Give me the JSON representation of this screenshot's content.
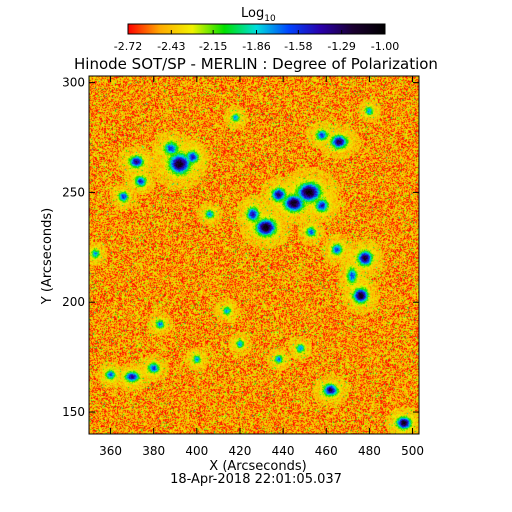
{
  "chart_data": {
    "type": "heatmap",
    "title": "Hinode SOT/SP - MERLIN : Degree of Polarization",
    "xlabel": "X (Arcseconds)",
    "ylabel": "Y (Arcseconds)",
    "xlim": [
      350,
      503
    ],
    "ylim": [
      140,
      303
    ],
    "x_ticks": [
      360,
      380,
      400,
      420,
      440,
      460,
      480,
      500
    ],
    "y_ticks": [
      150,
      200,
      250,
      300
    ],
    "colorbar": {
      "label": "Log",
      "label_subscript": "10",
      "range": [
        -2.72,
        -1.0
      ],
      "ticks": [
        "-2.72",
        "-2.43",
        "-2.15",
        "-1.86",
        "-1.58",
        "-1.29",
        "-1.00"
      ],
      "colormap": [
        "#ff0000",
        "#ffaa00",
        "#f2f200",
        "#00e000",
        "#00dddd",
        "#0044ff",
        "#2a00aa",
        "#1a0030",
        "#000000"
      ]
    },
    "background_level": -2.5,
    "features": [
      {
        "x": 392,
        "y": 263,
        "peak": -1.1,
        "sx": 3.2,
        "sy": 3.0
      },
      {
        "x": 388,
        "y": 270,
        "peak": -1.55,
        "sx": 2.2,
        "sy": 2.0
      },
      {
        "x": 398,
        "y": 266,
        "peak": -1.5,
        "sx": 2.0,
        "sy": 2.0
      },
      {
        "x": 372,
        "y": 264,
        "peak": -1.35,
        "sx": 2.2,
        "sy": 1.8
      },
      {
        "x": 374,
        "y": 255,
        "peak": -1.5,
        "sx": 1.8,
        "sy": 1.6
      },
      {
        "x": 366,
        "y": 248,
        "peak": -1.55,
        "sx": 1.6,
        "sy": 1.6
      },
      {
        "x": 452,
        "y": 250,
        "peak": -1.05,
        "sx": 3.5,
        "sy": 2.8
      },
      {
        "x": 445,
        "y": 245,
        "peak": -1.1,
        "sx": 3.0,
        "sy": 2.5
      },
      {
        "x": 438,
        "y": 249,
        "peak": -1.3,
        "sx": 2.2,
        "sy": 2.0
      },
      {
        "x": 432,
        "y": 234,
        "peak": -1.05,
        "sx": 3.0,
        "sy": 2.5
      },
      {
        "x": 426,
        "y": 240,
        "peak": -1.45,
        "sx": 2.0,
        "sy": 2.2
      },
      {
        "x": 458,
        "y": 244,
        "peak": -1.45,
        "sx": 2.0,
        "sy": 2.0
      },
      {
        "x": 466,
        "y": 273,
        "peak": -1.25,
        "sx": 2.5,
        "sy": 2.0
      },
      {
        "x": 458,
        "y": 276,
        "peak": -1.55,
        "sx": 1.8,
        "sy": 1.6
      },
      {
        "x": 478,
        "y": 220,
        "peak": -1.2,
        "sx": 2.2,
        "sy": 2.2
      },
      {
        "x": 476,
        "y": 203,
        "peak": -1.1,
        "sx": 2.2,
        "sy": 2.2
      },
      {
        "x": 472,
        "y": 212,
        "peak": -1.6,
        "sx": 1.6,
        "sy": 2.5
      },
      {
        "x": 465,
        "y": 224,
        "peak": -1.6,
        "sx": 1.8,
        "sy": 1.8
      },
      {
        "x": 453,
        "y": 232,
        "peak": -1.65,
        "sx": 1.6,
        "sy": 1.6
      },
      {
        "x": 370,
        "y": 166,
        "peak": -1.4,
        "sx": 2.2,
        "sy": 1.6
      },
      {
        "x": 380,
        "y": 170,
        "peak": -1.55,
        "sx": 1.8,
        "sy": 1.6
      },
      {
        "x": 360,
        "y": 167,
        "peak": -1.6,
        "sx": 1.6,
        "sy": 1.5
      },
      {
        "x": 462,
        "y": 160,
        "peak": -1.25,
        "sx": 2.2,
        "sy": 1.8
      },
      {
        "x": 496,
        "y": 145,
        "peak": -1.1,
        "sx": 2.2,
        "sy": 1.8
      },
      {
        "x": 406,
        "y": 240,
        "peak": -1.7,
        "sx": 1.5,
        "sy": 1.4
      },
      {
        "x": 383,
        "y": 190,
        "peak": -1.7,
        "sx": 1.5,
        "sy": 1.4
      },
      {
        "x": 414,
        "y": 196,
        "peak": -1.75,
        "sx": 1.4,
        "sy": 1.4
      },
      {
        "x": 420,
        "y": 181,
        "peak": -1.75,
        "sx": 1.4,
        "sy": 1.4
      },
      {
        "x": 438,
        "y": 174,
        "peak": -1.7,
        "sx": 1.4,
        "sy": 1.4
      },
      {
        "x": 448,
        "y": 179,
        "peak": -1.7,
        "sx": 1.4,
        "sy": 1.4
      },
      {
        "x": 418,
        "y": 284,
        "peak": -1.75,
        "sx": 1.4,
        "sy": 1.4
      },
      {
        "x": 480,
        "y": 287,
        "peak": -1.75,
        "sx": 1.4,
        "sy": 1.4
      },
      {
        "x": 353,
        "y": 222,
        "peak": -1.75,
        "sx": 1.4,
        "sy": 1.4
      },
      {
        "x": 400,
        "y": 174,
        "peak": -1.75,
        "sx": 1.4,
        "sy": 1.4
      }
    ]
  },
  "timestamp": "18-Apr-2018 22:01:05.037"
}
